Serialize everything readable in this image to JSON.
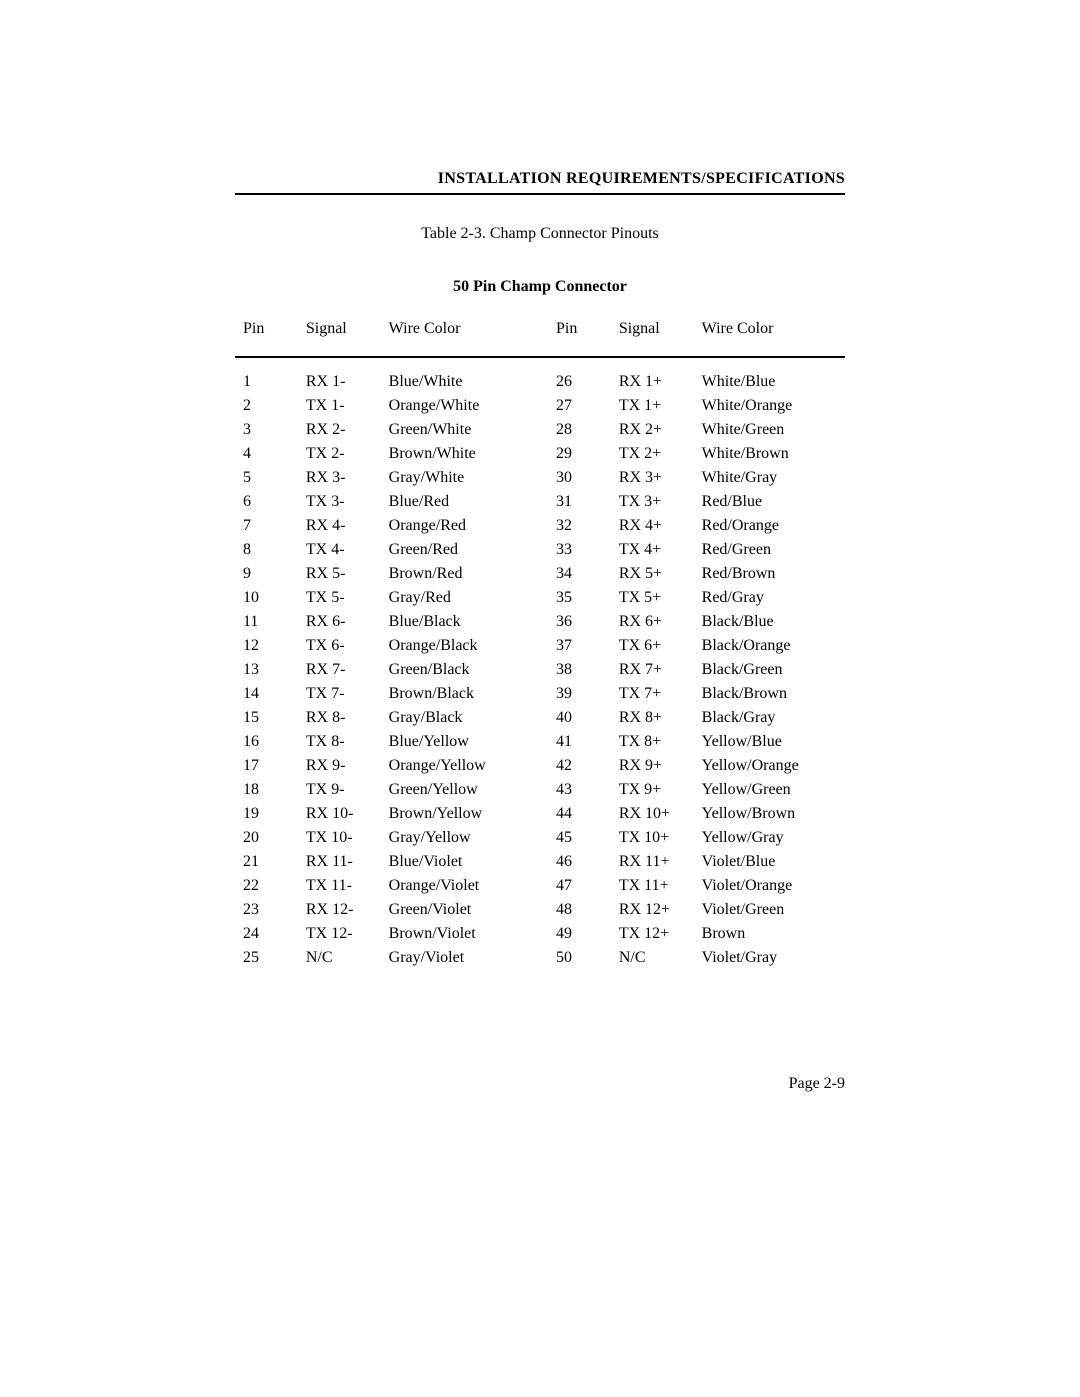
{
  "header": "INSTALLATION REQUIREMENTS/SPECIFICATIONS",
  "caption": "Table 2-3.  Champ Connector Pinouts",
  "subtitle": "50 Pin Champ Connector",
  "footer": "Page 2-9",
  "cols": {
    "pin": "Pin",
    "signal": "Signal",
    "color": "Wire Color"
  },
  "left": [
    {
      "pin": "1",
      "signal": "RX 1-",
      "color": "Blue/White"
    },
    {
      "pin": "2",
      "signal": "TX 1-",
      "color": "Orange/White"
    },
    {
      "pin": "3",
      "signal": "RX 2-",
      "color": "Green/White"
    },
    {
      "pin": "4",
      "signal": "TX 2-",
      "color": "Brown/White"
    },
    {
      "pin": "5",
      "signal": "RX 3-",
      "color": "Gray/White"
    },
    {
      "pin": "6",
      "signal": "TX 3-",
      "color": "Blue/Red"
    },
    {
      "pin": "7",
      "signal": "RX 4-",
      "color": "Orange/Red"
    },
    {
      "pin": "8",
      "signal": "TX 4-",
      "color": "Green/Red"
    },
    {
      "pin": "9",
      "signal": "RX 5-",
      "color": "Brown/Red"
    },
    {
      "pin": "10",
      "signal": "TX 5-",
      "color": "Gray/Red"
    },
    {
      "pin": "11",
      "signal": "RX 6-",
      "color": "Blue/Black"
    },
    {
      "pin": "12",
      "signal": "TX 6-",
      "color": "Orange/Black"
    },
    {
      "pin": "13",
      "signal": "RX 7-",
      "color": "Green/Black"
    },
    {
      "pin": "14",
      "signal": "TX 7-",
      "color": "Brown/Black"
    },
    {
      "pin": "15",
      "signal": "RX 8-",
      "color": "Gray/Black"
    },
    {
      "pin": "16",
      "signal": "TX 8-",
      "color": "Blue/Yellow"
    },
    {
      "pin": "17",
      "signal": "RX 9-",
      "color": "Orange/Yellow"
    },
    {
      "pin": "18",
      "signal": "TX 9-",
      "color": "Green/Yellow"
    },
    {
      "pin": "19",
      "signal": "RX 10-",
      "color": "Brown/Yellow"
    },
    {
      "pin": "20",
      "signal": "TX 10-",
      "color": "Gray/Yellow"
    },
    {
      "pin": "21",
      "signal": "RX 11-",
      "color": "Blue/Violet"
    },
    {
      "pin": "22",
      "signal": "TX 11-",
      "color": "Orange/Violet"
    },
    {
      "pin": "23",
      "signal": "RX 12-",
      "color": "Green/Violet"
    },
    {
      "pin": "24",
      "signal": "TX 12-",
      "color": "Brown/Violet"
    },
    {
      "pin": "25",
      "signal": "N/C",
      "color": "Gray/Violet"
    }
  ],
  "right": [
    {
      "pin": "26",
      "signal": "RX 1+",
      "color": "White/Blue"
    },
    {
      "pin": "27",
      "signal": "TX 1+",
      "color": "White/Orange"
    },
    {
      "pin": "28",
      "signal": "RX 2+",
      "color": "White/Green"
    },
    {
      "pin": "29",
      "signal": "TX 2+",
      "color": "White/Brown"
    },
    {
      "pin": "30",
      "signal": "RX 3+",
      "color": "White/Gray"
    },
    {
      "pin": "31",
      "signal": "TX 3+",
      "color": "Red/Blue"
    },
    {
      "pin": "32",
      "signal": "RX 4+",
      "color": "Red/Orange"
    },
    {
      "pin": "33",
      "signal": "TX 4+",
      "color": "Red/Green"
    },
    {
      "pin": "34",
      "signal": "RX 5+",
      "color": "Red/Brown"
    },
    {
      "pin": "35",
      "signal": "TX 5+",
      "color": "Red/Gray"
    },
    {
      "pin": "36",
      "signal": "RX 6+",
      "color": "Black/Blue"
    },
    {
      "pin": "37",
      "signal": "TX 6+",
      "color": "Black/Orange"
    },
    {
      "pin": "38",
      "signal": "RX 7+",
      "color": "Black/Green"
    },
    {
      "pin": "39",
      "signal": "TX 7+",
      "color": "Black/Brown"
    },
    {
      "pin": "40",
      "signal": "RX 8+",
      "color": "Black/Gray"
    },
    {
      "pin": "41",
      "signal": "TX 8+",
      "color": "Yellow/Blue"
    },
    {
      "pin": "42",
      "signal": "RX 9+",
      "color": "Yellow/Orange"
    },
    {
      "pin": "43",
      "signal": "TX 9+",
      "color": "Yellow/Green"
    },
    {
      "pin": "44",
      "signal": "RX 10+",
      "color": "Yellow/Brown"
    },
    {
      "pin": "45",
      "signal": "TX 10+",
      "color": "Yellow/Gray"
    },
    {
      "pin": "46",
      "signal": "RX 11+",
      "color": "Violet/Blue"
    },
    {
      "pin": "47",
      "signal": "TX 11+",
      "color": "Violet/Orange"
    },
    {
      "pin": "48",
      "signal": "RX 12+",
      "color": "Violet/Green"
    },
    {
      "pin": "49",
      "signal": "TX 12+",
      "color": "Brown"
    },
    {
      "pin": "50",
      "signal": "N/C",
      "color": "Violet/Gray"
    }
  ]
}
